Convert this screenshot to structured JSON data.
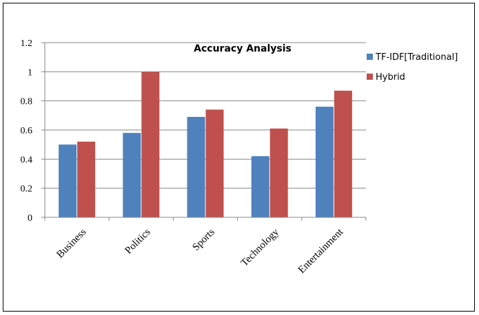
{
  "chart_data": {
    "type": "bar",
    "title": "Accuracy Analysis",
    "xlabel": "",
    "ylabel": "",
    "categories": [
      "Business",
      "Politics",
      "Sports",
      "Technology",
      "Entertainment"
    ],
    "series": [
      {
        "name": "TF-IDF[Traditional]",
        "color": "#4f81bd",
        "values": [
          0.5,
          0.58,
          0.69,
          0.42,
          0.76
        ]
      },
      {
        "name": "Hybrid",
        "color": "#c0504d",
        "values": [
          0.52,
          1.0,
          0.74,
          0.61,
          0.87
        ]
      }
    ],
    "ylim": [
      0,
      1.2
    ],
    "yticks": [
      "0",
      "0.2",
      "0.4",
      "0.6",
      "0.8",
      "1",
      "1.2"
    ],
    "grid": true,
    "legend_position": "right"
  }
}
